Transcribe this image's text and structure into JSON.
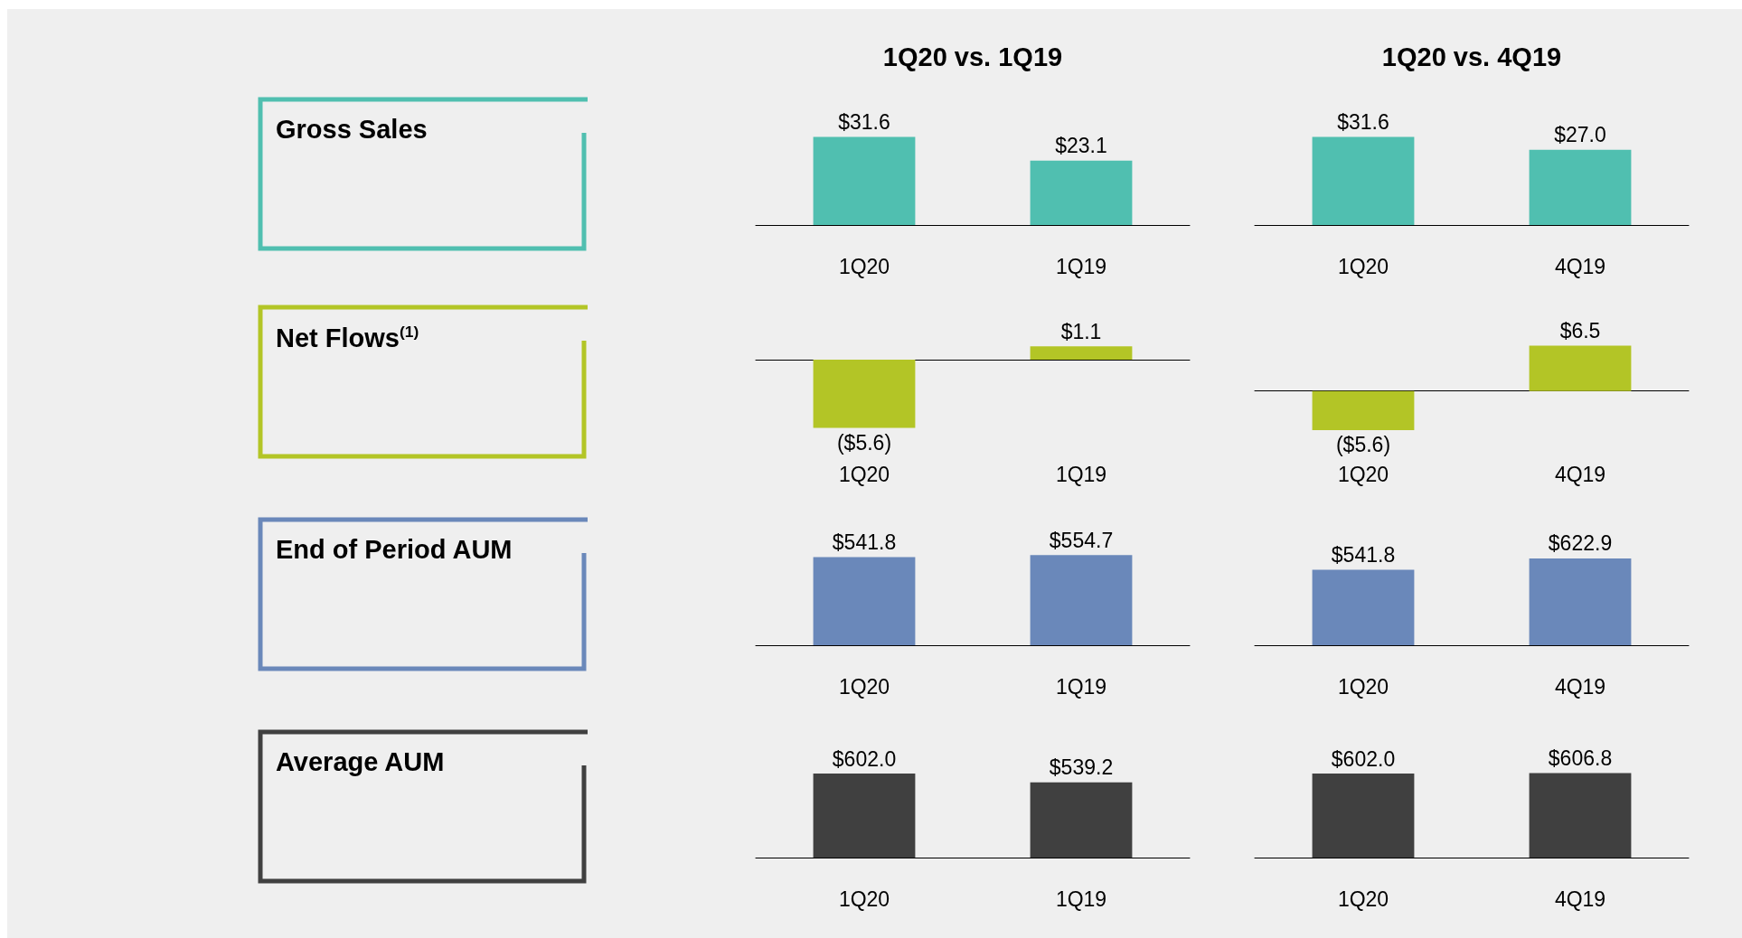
{
  "chart_data": [
    {
      "type": "other",
      "title": "Gross Sales"
    },
    {
      "type": "bar",
      "title": "1Q20 vs. 1Q19",
      "categories": [
        "1Q20",
        "1Q19"
      ],
      "values": [
        31.6,
        23.1
      ],
      "value_labels": [
        "$31.6",
        "$23.1"
      ],
      "color": "#50bfb0"
    },
    {
      "type": "bar",
      "title": "1Q20 vs. 4Q19",
      "categories": [
        "1Q20",
        "4Q19"
      ],
      "values": [
        31.6,
        27.0
      ],
      "value_labels": [
        "$31.6",
        "$27.0"
      ],
      "color": "#50bfb0"
    },
    {
      "type": "other",
      "title": "Net Flows$^{(1)}$"
    },
    {
      "type": "bar",
      "categories": [
        "1Q20",
        "1Q19"
      ],
      "values": [
        -5.6,
        1.1
      ],
      "value_labels": [
        "($5.6)",
        "$1.1"
      ],
      "color": "#b3c526"
    },
    {
      "type": "bar",
      "categories": [
        "1Q20",
        "4Q19"
      ],
      "values": [
        -5.6,
        6.5
      ],
      "value_labels": [
        "($5.6)",
        "$6.5"
      ],
      "color": "#b3c526"
    },
    {
      "type": "other",
      "title": "End of Period AUM"
    },
    {
      "type": "bar",
      "categories": [
        "1Q20",
        "1Q19"
      ],
      "values": [
        541.8,
        554.7
      ],
      "value_labels": [
        "$541.8",
        "$554.7"
      ],
      "color": "#6a88ba"
    },
    {
      "type": "bar",
      "categories": [
        "1Q20",
        "4Q19"
      ],
      "values": [
        541.8,
        622.9
      ],
      "value_labels": [
        "$541.8",
        "$622.9"
      ],
      "color": "#6a88ba"
    },
    {
      "type": "other",
      "title": "Average AUM"
    },
    {
      "type": "bar",
      "categories": [
        "1Q20",
        "1Q19"
      ],
      "values": [
        602.0,
        539.2
      ],
      "value_labels": [
        "$602.0",
        "$539.2"
      ],
      "color": "#404040"
    },
    {
      "type": "bar",
      "categories": [
        "1Q20",
        "4Q19"
      ],
      "values": [
        602.0,
        606.8
      ],
      "value_labels": [
        "$602.0",
        "$606.8"
      ],
      "color": "#404040"
    }
  ]
}
